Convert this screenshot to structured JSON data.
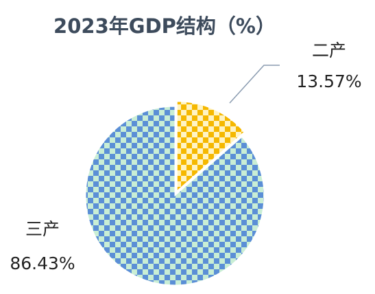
{
  "chart_data": {
    "type": "pie",
    "title": "2023年GDP结构（%）",
    "categories": [
      "二产",
      "三产"
    ],
    "values": [
      13.57,
      86.43
    ],
    "value_labels": [
      "13.57%",
      "86.43%"
    ],
    "colors": [
      "#f5b800",
      "#5b8fd6"
    ]
  }
}
